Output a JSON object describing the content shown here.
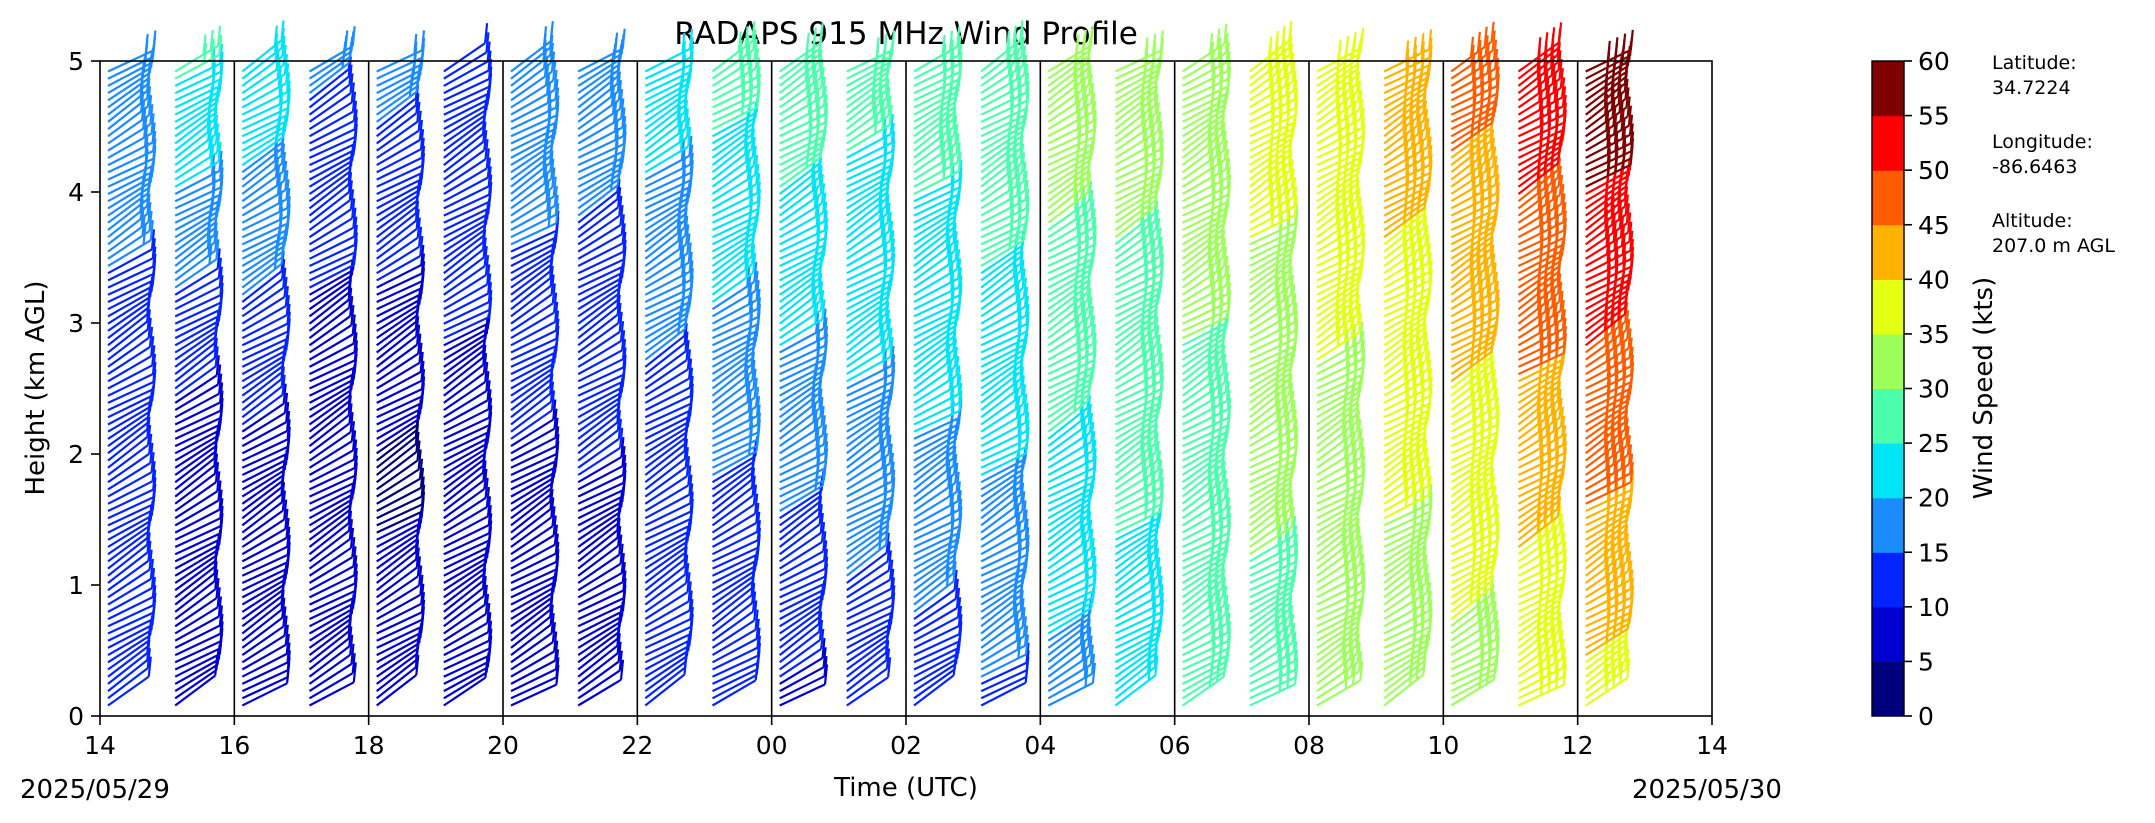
{
  "chart_data": {
    "type": "wind-barb profile",
    "title": "RADAPS 915 MHz Wind Profile",
    "xlabel": "Time (UTC)",
    "ylabel": "Height (km AGL)",
    "x_tick_labels": [
      "14",
      "16",
      "18",
      "20",
      "22",
      "00",
      "02",
      "04",
      "06",
      "08",
      "10",
      "12",
      "14"
    ],
    "x_range_hours": [
      14,
      38
    ],
    "y_ticks": [
      0,
      1,
      2,
      3,
      4,
      5
    ],
    "ylim": [
      0,
      5
    ],
    "date_start": "2025/05/29",
    "date_end": "2025/05/30",
    "grid": false,
    "colorbar": {
      "label": "Wind Speed (kts)",
      "ticks": [
        0,
        5,
        10,
        15,
        20,
        25,
        30,
        35,
        40,
        45,
        50,
        55,
        60
      ],
      "colors": [
        "#00007f",
        "#0000d1",
        "#0424ff",
        "#1a8cff",
        "#00e4f8",
        "#4bffac",
        "#9cff5a",
        "#e4ff12",
        "#ffb300",
        "#ff5c00",
        "#ff0000",
        "#7f0000"
      ]
    },
    "profiles": [
      {
        "time": 14.0,
        "speed_low": 10,
        "speed_mid": 10,
        "speed_high": 20
      },
      {
        "time": 15.0,
        "speed_low": 8,
        "speed_mid": 6,
        "speed_high": 26
      },
      {
        "time": 16.0,
        "speed_low": 9,
        "speed_mid": 8,
        "speed_high": 24
      },
      {
        "time": 17.0,
        "speed_low": 8,
        "speed_mid": 5,
        "speed_high": 16
      },
      {
        "time": 18.0,
        "speed_low": 8,
        "speed_mid": 4,
        "speed_high": 17
      },
      {
        "time": 19.0,
        "speed_low": 8,
        "speed_mid": 8,
        "speed_high": 14
      },
      {
        "time": 20.0,
        "speed_low": 9,
        "speed_mid": 9,
        "speed_high": 20
      },
      {
        "time": 21.0,
        "speed_low": 9,
        "speed_mid": 10,
        "speed_high": 18
      },
      {
        "time": 22.0,
        "speed_low": 10,
        "speed_mid": 12,
        "speed_high": 23
      },
      {
        "time": 23.0,
        "speed_low": 10,
        "speed_mid": 15,
        "speed_high": 27
      },
      {
        "time": 24.0,
        "speed_low": 9,
        "speed_mid": 16,
        "speed_high": 29
      },
      {
        "time": 25.0,
        "speed_low": 11,
        "speed_mid": 18,
        "speed_high": 27
      },
      {
        "time": 26.0,
        "speed_low": 12,
        "speed_mid": 19,
        "speed_high": 28
      },
      {
        "time": 27.0,
        "speed_low": 14,
        "speed_mid": 20,
        "speed_high": 30
      },
      {
        "time": 28.0,
        "speed_low": 18,
        "speed_mid": 24,
        "speed_high": 34
      },
      {
        "time": 29.0,
        "speed_low": 22,
        "speed_mid": 26,
        "speed_high": 33
      },
      {
        "time": 30.0,
        "speed_low": 25,
        "speed_mid": 28,
        "speed_high": 34
      },
      {
        "time": 31.0,
        "speed_low": 28,
        "speed_mid": 31,
        "speed_high": 38
      },
      {
        "time": 32.0,
        "speed_low": 30,
        "speed_mid": 33,
        "speed_high": 40
      },
      {
        "time": 33.0,
        "speed_low": 30,
        "speed_mid": 36,
        "speed_high": 43
      },
      {
        "time": 34.0,
        "speed_low": 33,
        "speed_mid": 38,
        "speed_high": 47
      },
      {
        "time": 35.0,
        "speed_low": 35,
        "speed_mid": 42,
        "speed_high": 54
      },
      {
        "time": 36.0,
        "speed_low": 38,
        "speed_mid": 46,
        "speed_high": 59
      }
    ],
    "station_info": {
      "latitude_label": "Latitude:",
      "latitude": "34.7224",
      "longitude_label": "Longitude:",
      "longitude": "-86.6463",
      "altitude_label": "Altitude:",
      "altitude": "207.0 m AGL"
    }
  }
}
